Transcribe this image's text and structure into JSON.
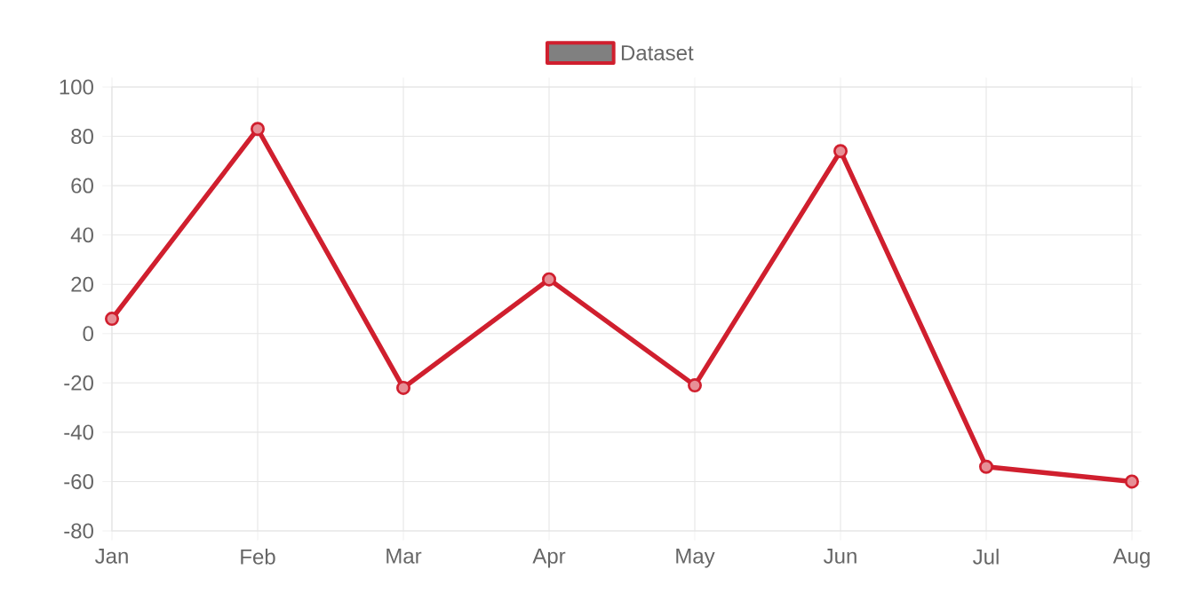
{
  "chart_data": {
    "type": "line",
    "categories": [
      "Jan",
      "Feb",
      "Mar",
      "Apr",
      "May",
      "Jun",
      "Jul",
      "Aug"
    ],
    "series": [
      {
        "name": "Dataset",
        "color": "#d01f2e",
        "values": [
          6,
          83,
          -22,
          22,
          -21,
          74,
          -54,
          -60
        ]
      }
    ],
    "ylim": [
      -80,
      100
    ],
    "yticks": [
      -80,
      -60,
      -40,
      -20,
      0,
      20,
      40,
      60,
      80,
      100
    ],
    "grid": true,
    "legend": "top",
    "marker": "circle",
    "line_style": "solid"
  }
}
